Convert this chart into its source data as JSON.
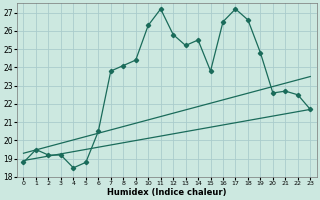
{
  "xlabel": "Humidex (Indice chaleur)",
  "background_color": "#cce8e0",
  "grid_color": "#aacccc",
  "line_color": "#1a6b5a",
  "xlim": [
    -0.5,
    23.5
  ],
  "ylim": [
    18,
    27.5
  ],
  "xticks": [
    0,
    1,
    2,
    3,
    4,
    5,
    6,
    7,
    8,
    9,
    10,
    11,
    12,
    13,
    14,
    15,
    16,
    17,
    18,
    19,
    20,
    21,
    22,
    23
  ],
  "yticks": [
    18,
    19,
    20,
    21,
    22,
    23,
    24,
    25,
    26,
    27
  ],
  "curve1_x": [
    0,
    1,
    2,
    3,
    4,
    5,
    6,
    7,
    8,
    9,
    10,
    11,
    12,
    13,
    14,
    15,
    16,
    17,
    18,
    19,
    20,
    21,
    22,
    23
  ],
  "curve1_y": [
    18.8,
    19.5,
    19.2,
    19.2,
    18.5,
    18.8,
    20.5,
    23.8,
    24.1,
    24.4,
    26.3,
    27.2,
    25.8,
    25.2,
    25.5,
    23.8,
    26.5,
    27.2,
    26.6,
    24.8,
    22.6,
    22.7,
    22.5,
    21.7
  ],
  "curve2_x": [
    0,
    23
  ],
  "curve2_y": [
    19.3,
    23.5
  ],
  "curve3_x": [
    0,
    23
  ],
  "curve3_y": [
    18.9,
    21.7
  ]
}
